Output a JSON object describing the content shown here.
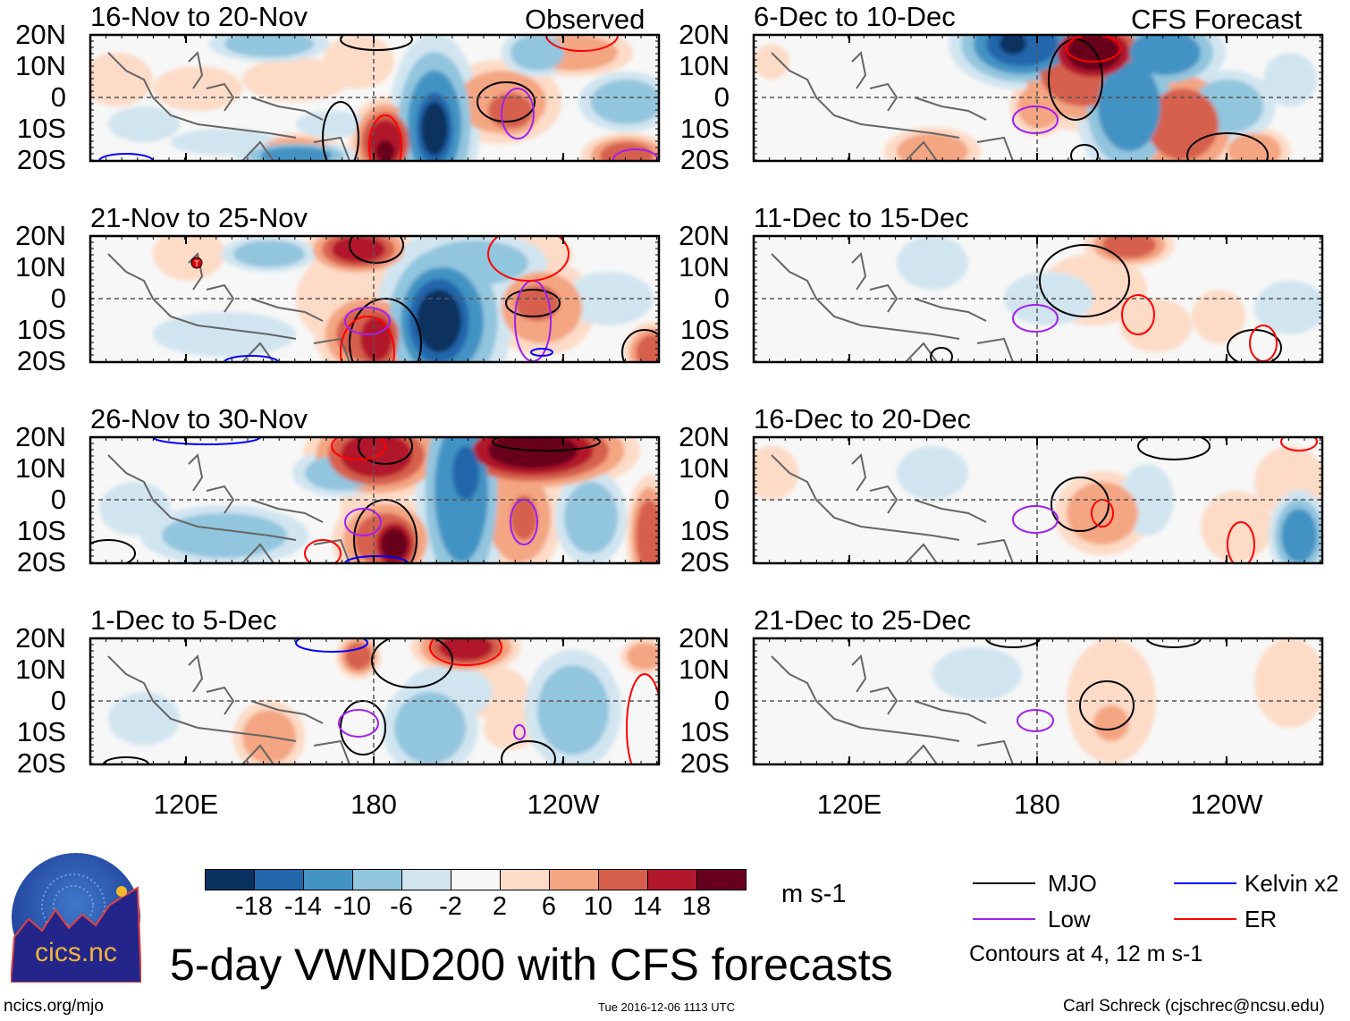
{
  "figure_title": "5-day VWND200 with CFS forecasts",
  "left_header": "Observed",
  "right_header": "CFS Forecast",
  "observed_panels": [
    "16-Nov to 20-Nov",
    "21-Nov to 25-Nov",
    "26-Nov to 30-Nov",
    "1-Dec to 5-Dec"
  ],
  "forecast_panels": [
    "6-Dec to 10-Dec",
    "11-Dec to 15-Dec",
    "16-Dec to 20-Dec",
    "21-Dec to 25-Dec"
  ],
  "lat_labels": [
    "20N",
    "10N",
    "0",
    "10S",
    "20S"
  ],
  "lon_labels": [
    "120E",
    "180",
    "120W"
  ],
  "storm_marker": "T",
  "colorbar": {
    "labels": [
      "-18",
      "-14",
      "-10",
      "-6",
      "-2",
      "2",
      "6",
      "10",
      "14",
      "18"
    ],
    "colors": [
      "#0b3161",
      "#2266ac",
      "#4393c3",
      "#92c5de",
      "#d1e5f0",
      "#f7f7f7",
      "#fddbc7",
      "#f4a582",
      "#d6604d",
      "#b2182b",
      "#67001f"
    ],
    "units": "m s-1"
  },
  "legend": [
    {
      "label": "MJO",
      "color": "#000000"
    },
    {
      "label": "Kelvin x2",
      "color": "#0000ff"
    },
    {
      "label": "Low",
      "color": "#a020f0"
    },
    {
      "label": "ER",
      "color": "#ff0000"
    }
  ],
  "contour_note": "Contours at 4, 12 m s-1",
  "logo": {
    "text": "cics.nc",
    "ring_text": "Cooperative Institute for Climate and Satellites"
  },
  "footer": {
    "url": "ncics.org/mjo",
    "timestamp": "Tue 2016-12-06 1113 UTC",
    "credit": "Carl Schreck (cjschrec@ncsu.edu)"
  }
}
